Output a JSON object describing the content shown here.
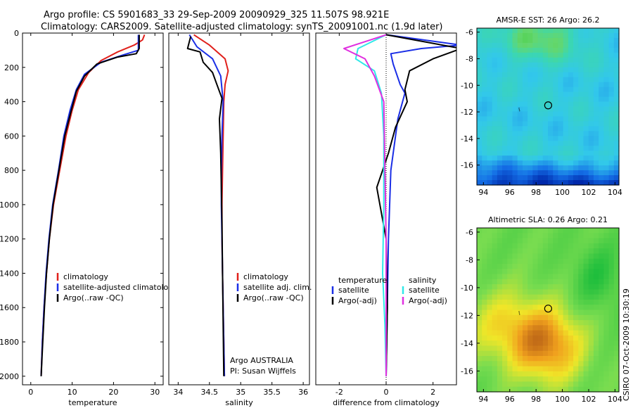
{
  "header": {
    "line1": "Argo profile: CS 5901683_33 29-Sep-2009 20090929_325 11.507S 98.921E",
    "line2": "Climatology: CARS2009. Satellite-adjusted climatology: synTS_20091001.nc (1.9d later)"
  },
  "side_stamp": "CSIRO 07-Oct-2009 10:30:19",
  "colors": {
    "climatology": "#e0201b",
    "satellite": "#1a2ee6",
    "argo": "#000000",
    "salinity_satellite": "#30e8e8",
    "salinity_argo": "#e030e0"
  },
  "chart_data": [
    {
      "type": "line",
      "xlabel": "temperature",
      "ylabel": "",
      "xlim": [
        -2,
        32
      ],
      "ylim": [
        2050,
        0
      ],
      "xticks": [
        0,
        10,
        20,
        30
      ],
      "yticks": [
        0,
        200,
        400,
        600,
        800,
        1000,
        1200,
        1400,
        1600,
        1800,
        2000
      ],
      "legend": {
        "placement": "bottom",
        "entries": [
          "climatology",
          "satellite-adjusted climatology",
          "Argo(..raw -QC)"
        ]
      },
      "series": [
        {
          "name": "climatology",
          "color": "#e0201b",
          "points": [
            [
              27.5,
              10
            ],
            [
              27,
              40
            ],
            [
              25,
              70
            ],
            [
              21,
              110
            ],
            [
              17,
              160
            ],
            [
              14,
              230
            ],
            [
              11.5,
              330
            ],
            [
              10,
              450
            ],
            [
              8.5,
              600
            ],
            [
              7,
              800
            ],
            [
              5.5,
              1000
            ],
            [
              4.5,
              1200
            ],
            [
              3.8,
              1400
            ],
            [
              3.2,
              1600
            ],
            [
              2.8,
              1800
            ],
            [
              2.5,
              2000
            ]
          ]
        },
        {
          "name": "satellite-adjusted climatology",
          "color": "#1a2ee6",
          "points": [
            [
              26,
              10
            ],
            [
              26,
              60
            ],
            [
              26,
              100
            ],
            [
              22,
              130
            ],
            [
              17,
              170
            ],
            [
              13,
              240
            ],
            [
              11,
              330
            ],
            [
              9.5,
              450
            ],
            [
              8,
              600
            ],
            [
              6.7,
              800
            ],
            [
              5.3,
              1000
            ],
            [
              4.4,
              1200
            ],
            [
              3.7,
              1400
            ],
            [
              3.2,
              1600
            ],
            [
              2.8,
              1800
            ],
            [
              2.5,
              2000
            ]
          ]
        },
        {
          "name": "Argo(..raw -QC)",
          "color": "#000000",
          "points": [
            [
              26.2,
              10
            ],
            [
              26.2,
              90
            ],
            [
              25.5,
              120
            ],
            [
              21,
              140
            ],
            [
              16,
              180
            ],
            [
              13,
              250
            ],
            [
              11,
              340
            ],
            [
              9.8,
              450
            ],
            [
              8.2,
              600
            ],
            [
              6.8,
              800
            ],
            [
              5.4,
              1000
            ],
            [
              4.5,
              1200
            ],
            [
              3.8,
              1400
            ],
            [
              3.3,
              1600
            ],
            [
              2.9,
              1800
            ],
            [
              2.5,
              2000
            ]
          ]
        }
      ]
    },
    {
      "type": "line",
      "xlabel": "salinity",
      "ylabel": "",
      "xlim": [
        33.85,
        36.1
      ],
      "ylim": [
        2050,
        0
      ],
      "xticks": [
        34,
        34.5,
        35,
        35.5,
        36
      ],
      "yticks": [],
      "legend": {
        "placement": "bottom",
        "entries": [
          "climatology",
          "satellite adj. clim.",
          "Argo(..raw -QC)"
        ]
      },
      "annotation": {
        "line1": "Argo AUSTRALIA",
        "line2": "PI: Susan Wijffels"
      },
      "series": [
        {
          "name": "climatology",
          "color": "#e0201b",
          "points": [
            [
              34.25,
              10
            ],
            [
              34.5,
              70
            ],
            [
              34.75,
              150
            ],
            [
              34.8,
              220
            ],
            [
              34.75,
              300
            ],
            [
              34.73,
              400
            ],
            [
              34.72,
              600
            ],
            [
              34.71,
              800
            ],
            [
              34.7,
              1000
            ],
            [
              34.7,
              1200
            ],
            [
              34.71,
              1400
            ],
            [
              34.72,
              1600
            ],
            [
              34.73,
              1800
            ],
            [
              34.74,
              2000
            ]
          ]
        },
        {
          "name": "satellite adj. clim.",
          "color": "#1a2ee6",
          "points": [
            [
              34.18,
              10
            ],
            [
              34.3,
              80
            ],
            [
              34.55,
              150
            ],
            [
              34.68,
              250
            ],
            [
              34.72,
              400
            ],
            [
              34.7,
              600
            ],
            [
              34.69,
              800
            ],
            [
              34.69,
              1000
            ],
            [
              34.7,
              1200
            ],
            [
              34.71,
              1400
            ],
            [
              34.72,
              1600
            ],
            [
              34.73,
              1800
            ],
            [
              34.74,
              2000
            ]
          ]
        },
        {
          "name": "Argo(..raw -QC)",
          "color": "#000000",
          "points": [
            [
              34.2,
              20
            ],
            [
              34.15,
              90
            ],
            [
              34.35,
              110
            ],
            [
              34.4,
              170
            ],
            [
              34.55,
              230
            ],
            [
              34.62,
              300
            ],
            [
              34.7,
              380
            ],
            [
              34.66,
              500
            ],
            [
              34.68,
              700
            ],
            [
              34.69,
              900
            ],
            [
              34.7,
              1100
            ],
            [
              34.71,
              1400
            ],
            [
              34.72,
              1700
            ],
            [
              34.73,
              2000
            ]
          ]
        }
      ]
    },
    {
      "type": "line",
      "xlabel": "difference from climatology",
      "ylabel": "",
      "xlim": [
        -3,
        3
      ],
      "ylim": [
        2050,
        0
      ],
      "xticks": [
        -2,
        0,
        2
      ],
      "yticks": [],
      "zero_line": true,
      "legend": {
        "placement": "bottom",
        "groups": [
          {
            "heading": "temperature",
            "entries": [
              "satellite",
              "Argo(-adj)"
            ]
          },
          {
            "heading": "salinity",
            "entries": [
              "satellite",
              "Argo(-adj)"
            ]
          }
        ]
      },
      "series": [
        {
          "name": "temperature satellite",
          "color": "#1a2ee6",
          "points": [
            [
              0,
              10
            ],
            [
              3.2,
              70
            ],
            [
              1.5,
              90
            ],
            [
              0.2,
              120
            ],
            [
              0.3,
              180
            ],
            [
              0.6,
              300
            ],
            [
              0.8,
              350
            ],
            [
              0.5,
              500
            ],
            [
              0.2,
              800
            ],
            [
              0.1,
              1200
            ],
            [
              0.05,
              1600
            ],
            [
              0,
              2000
            ]
          ]
        },
        {
          "name": "temperature Argo(-adj)",
          "color": "#000000",
          "points": [
            [
              0,
              10
            ],
            [
              3.2,
              90
            ],
            [
              2,
              150
            ],
            [
              1,
              220
            ],
            [
              0.8,
              330
            ],
            [
              0.9,
              400
            ],
            [
              0.4,
              550
            ],
            [
              0.1,
              700
            ],
            [
              -0.4,
              900
            ],
            [
              0,
              1200
            ],
            [
              0.05,
              1600
            ],
            [
              0,
              2000
            ]
          ]
        },
        {
          "name": "salinity satellite",
          "color": "#30e8e8",
          "points": [
            [
              0,
              10
            ],
            [
              -1.2,
              90
            ],
            [
              -1.3,
              150
            ],
            [
              -0.5,
              220
            ],
            [
              -0.2,
              350
            ],
            [
              -0.1,
              600
            ],
            [
              -0.1,
              1000
            ],
            [
              -0.15,
              1400
            ],
            [
              -0.05,
              1700
            ],
            [
              0,
              2000
            ]
          ]
        },
        {
          "name": "salinity Argo(-adj)",
          "color": "#e030e0",
          "points": [
            [
              0,
              10
            ],
            [
              -1.8,
              90
            ],
            [
              -0.9,
              150
            ],
            [
              -0.5,
              250
            ],
            [
              -0.1,
              400
            ],
            [
              -0.05,
              800
            ],
            [
              0,
              1200
            ],
            [
              0,
              2000
            ]
          ]
        }
      ]
    },
    {
      "type": "heatmap",
      "title": "AMSR-E SST: 26 Argo: 26.2",
      "xlim": [
        93.5,
        104.3
      ],
      "ylim": [
        -17.5,
        -5.7
      ],
      "xticks": [
        94,
        96,
        98,
        100,
        102,
        104
      ],
      "yticks": [
        -6,
        -8,
        -10,
        -12,
        -14,
        -16
      ],
      "colormap": "sst",
      "argo_marker": {
        "lon": 98.921,
        "lat": -11.507
      },
      "track": [
        [
          96.7,
          -11.7
        ],
        [
          96.75,
          -11.95
        ]
      ]
    },
    {
      "type": "heatmap",
      "title": "Altimetric SLA: 0.26 Argo: 0.21",
      "xlim": [
        93.5,
        104.3
      ],
      "ylim": [
        -17.5,
        -5.7
      ],
      "xticks": [
        94,
        96,
        98,
        100,
        102,
        104
      ],
      "yticks": [
        -6,
        -8,
        -10,
        -12,
        -14,
        -16
      ],
      "colormap": "sla",
      "argo_marker": {
        "lon": 98.921,
        "lat": -11.507
      },
      "track": [
        [
          96.7,
          -11.7
        ],
        [
          96.75,
          -11.95
        ]
      ]
    }
  ]
}
